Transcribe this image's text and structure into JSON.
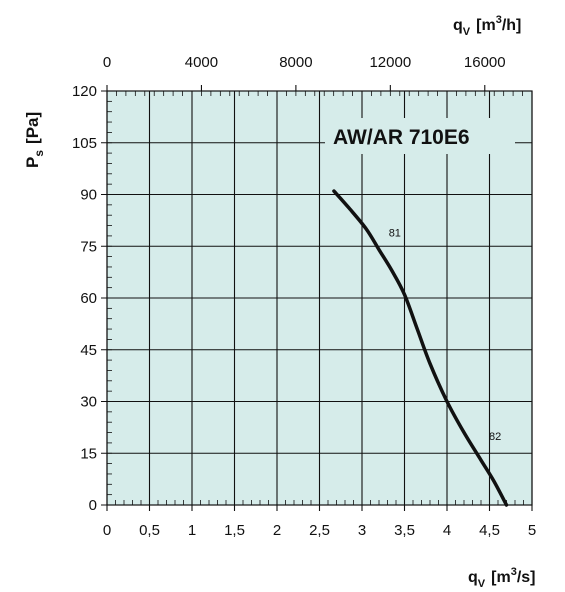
{
  "colors": {
    "plot_bg": "#d6ecea",
    "grid": "#111111",
    "curve": "#111111"
  },
  "chart_data": {
    "type": "line",
    "title": "AW/AR 710E6",
    "xlabel": {
      "base": "q",
      "sub": "V",
      "unit": "[m",
      "sup": "3",
      "unit_end": "/s]"
    },
    "x2label": {
      "base": "q",
      "sub": "V",
      "unit": "[m",
      "sup": "3",
      "unit_end": "/h]"
    },
    "ylabel": {
      "base": "P",
      "sub": "s",
      "unit": "[Pa]"
    },
    "xlim": [
      0,
      5
    ],
    "ylim": [
      0,
      120
    ],
    "x2lim": [
      0,
      18000
    ],
    "x_ticks": [
      "0",
      "0,5",
      "1",
      "1,5",
      "2",
      "2,5",
      "3",
      "3,5",
      "4",
      "4,5",
      "5"
    ],
    "y_ticks": [
      "0",
      "15",
      "30",
      "45",
      "60",
      "75",
      "90",
      "105",
      "120"
    ],
    "x2_ticks": [
      "0",
      "4000",
      "8000",
      "12000",
      "16000"
    ],
    "grid": true,
    "series": [
      {
        "x": [
          2.67,
          2.85,
          3.05,
          3.2,
          3.35,
          3.5,
          3.65,
          3.8,
          4.0,
          4.2,
          4.4,
          4.55,
          4.7
        ],
        "y": [
          91,
          86,
          80,
          74,
          68,
          61,
          51,
          41,
          30,
          21,
          13,
          7,
          0
        ]
      }
    ],
    "annotations": [
      {
        "text": "81",
        "x": 3.22,
        "y": 79
      },
      {
        "text": "82",
        "x": 4.4,
        "y": 20
      }
    ]
  }
}
